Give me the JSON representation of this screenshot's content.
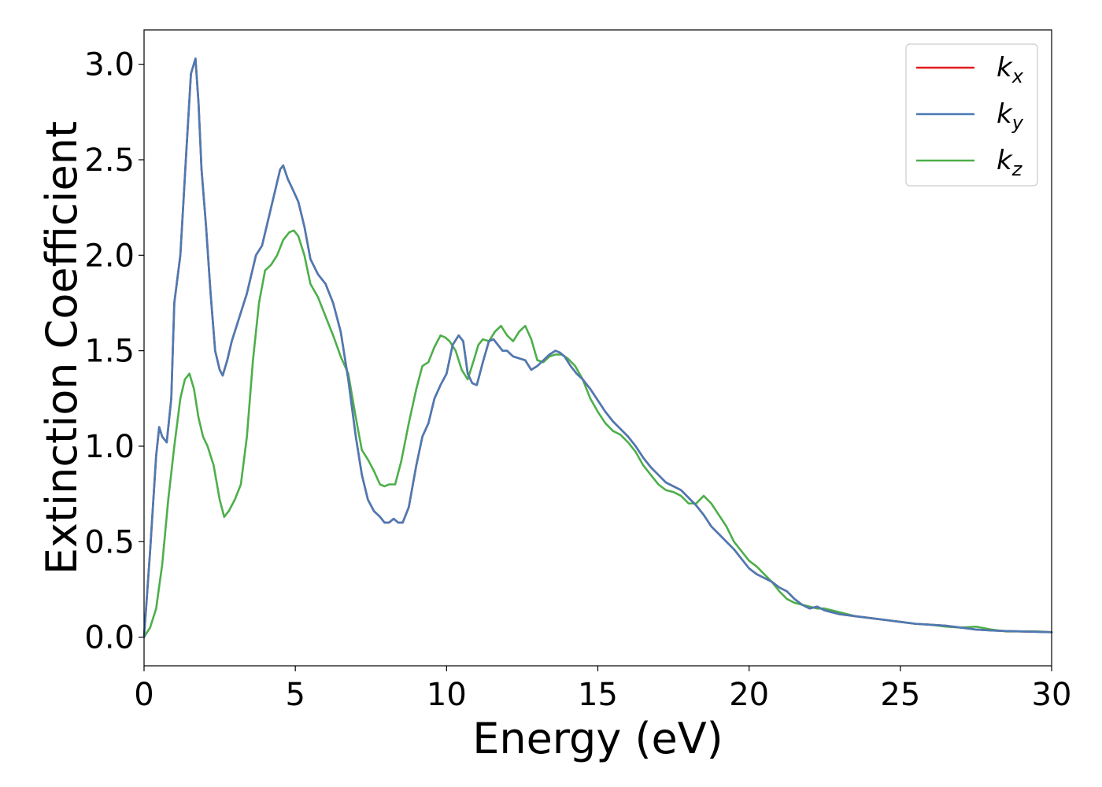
{
  "chart_data": {
    "type": "line",
    "title": "",
    "xlabel": "Energy (eV)",
    "ylabel": "Extinction Coefficient",
    "xlim": [
      0,
      30
    ],
    "ylim": [
      -0.15,
      3.18
    ],
    "xticks": [
      0,
      5,
      10,
      15,
      20,
      25,
      30
    ],
    "xtick_labels": [
      "0",
      "5",
      "10",
      "15",
      "20",
      "25",
      "30"
    ],
    "yticks": [
      0.0,
      0.5,
      1.0,
      1.5,
      2.0,
      2.5,
      3.0
    ],
    "ytick_labels": [
      "0.0",
      "0.5",
      "1.0",
      "1.5",
      "2.0",
      "2.5",
      "3.0"
    ],
    "grid": false,
    "legend_position": "top-right",
    "series": [
      {
        "name": "k",
        "name_sub": "x",
        "color": "#e41a1c",
        "x": [
          0,
          0.2,
          0.4,
          0.5,
          0.6,
          0.75,
          0.9,
          1.0,
          1.2,
          1.4,
          1.55,
          1.7,
          1.8,
          1.9,
          2.05,
          2.2,
          2.35,
          2.5,
          2.6,
          2.75,
          2.9,
          3.1,
          3.4,
          3.7,
          3.9,
          4.05,
          4.2,
          4.35,
          4.5,
          4.6,
          4.75,
          4.9,
          5.1,
          5.3,
          5.5,
          5.75,
          6.0,
          6.25,
          6.5,
          6.75,
          7.0,
          7.2,
          7.4,
          7.6,
          7.8,
          7.95,
          8.1,
          8.25,
          8.4,
          8.55,
          8.75,
          9.0,
          9.2,
          9.4,
          9.6,
          9.8,
          10.0,
          10.2,
          10.4,
          10.55,
          10.7,
          10.85,
          11.0,
          11.2,
          11.4,
          11.55,
          11.7,
          11.85,
          12.0,
          12.2,
          12.4,
          12.6,
          12.8,
          13.0,
          13.2,
          13.4,
          13.6,
          13.75,
          13.9,
          14.1,
          14.3,
          14.5,
          14.75,
          15.0,
          15.25,
          15.5,
          15.75,
          16.0,
          16.25,
          16.5,
          16.75,
          17.0,
          17.25,
          17.5,
          17.75,
          18.0,
          18.25,
          18.5,
          18.75,
          19.0,
          19.25,
          19.5,
          19.75,
          20.0,
          20.25,
          20.5,
          20.75,
          21.0,
          21.25,
          21.5,
          21.75,
          22.0,
          22.25,
          22.5,
          22.75,
          23.0,
          23.5,
          24.0,
          24.5,
          25.0,
          25.5,
          26.0,
          26.5,
          27.0,
          27.5,
          28.0,
          28.5,
          29.0,
          29.5,
          30.0
        ],
        "y": [
          0.0,
          0.45,
          0.95,
          1.1,
          1.05,
          1.02,
          1.25,
          1.75,
          2.0,
          2.55,
          2.95,
          3.03,
          2.8,
          2.45,
          2.15,
          1.8,
          1.5,
          1.4,
          1.37,
          1.45,
          1.55,
          1.65,
          1.8,
          2.0,
          2.05,
          2.15,
          2.25,
          2.35,
          2.45,
          2.47,
          2.4,
          2.35,
          2.28,
          2.15,
          1.98,
          1.9,
          1.85,
          1.75,
          1.6,
          1.35,
          1.05,
          0.85,
          0.72,
          0.66,
          0.63,
          0.6,
          0.6,
          0.62,
          0.6,
          0.6,
          0.68,
          0.9,
          1.05,
          1.12,
          1.25,
          1.32,
          1.38,
          1.53,
          1.58,
          1.55,
          1.38,
          1.33,
          1.32,
          1.44,
          1.55,
          1.56,
          1.53,
          1.5,
          1.5,
          1.47,
          1.46,
          1.45,
          1.4,
          1.42,
          1.45,
          1.48,
          1.5,
          1.49,
          1.47,
          1.42,
          1.38,
          1.35,
          1.3,
          1.24,
          1.18,
          1.13,
          1.09,
          1.05,
          1.0,
          0.94,
          0.89,
          0.85,
          0.81,
          0.79,
          0.77,
          0.73,
          0.69,
          0.64,
          0.58,
          0.54,
          0.5,
          0.46,
          0.41,
          0.36,
          0.33,
          0.31,
          0.29,
          0.26,
          0.24,
          0.2,
          0.17,
          0.15,
          0.16,
          0.14,
          0.13,
          0.12,
          0.11,
          0.1,
          0.09,
          0.08,
          0.07,
          0.065,
          0.06,
          0.05,
          0.04,
          0.035,
          0.032,
          0.03,
          0.028,
          0.026
        ]
      },
      {
        "name": "k",
        "name_sub": "y",
        "color": "#4a7bb5",
        "x": [
          0,
          0.2,
          0.4,
          0.5,
          0.6,
          0.75,
          0.9,
          1.0,
          1.2,
          1.4,
          1.55,
          1.7,
          1.8,
          1.9,
          2.05,
          2.2,
          2.35,
          2.5,
          2.6,
          2.75,
          2.9,
          3.1,
          3.4,
          3.7,
          3.9,
          4.05,
          4.2,
          4.35,
          4.5,
          4.6,
          4.75,
          4.9,
          5.1,
          5.3,
          5.5,
          5.75,
          6.0,
          6.25,
          6.5,
          6.75,
          7.0,
          7.2,
          7.4,
          7.6,
          7.8,
          7.95,
          8.1,
          8.25,
          8.4,
          8.55,
          8.75,
          9.0,
          9.2,
          9.4,
          9.6,
          9.8,
          10.0,
          10.2,
          10.4,
          10.55,
          10.7,
          10.85,
          11.0,
          11.2,
          11.4,
          11.55,
          11.7,
          11.85,
          12.0,
          12.2,
          12.4,
          12.6,
          12.8,
          13.0,
          13.2,
          13.4,
          13.6,
          13.75,
          13.9,
          14.1,
          14.3,
          14.5,
          14.75,
          15.0,
          15.25,
          15.5,
          15.75,
          16.0,
          16.25,
          16.5,
          16.75,
          17.0,
          17.25,
          17.5,
          17.75,
          18.0,
          18.25,
          18.5,
          18.75,
          19.0,
          19.25,
          19.5,
          19.75,
          20.0,
          20.25,
          20.5,
          20.75,
          21.0,
          21.25,
          21.5,
          21.75,
          22.0,
          22.25,
          22.5,
          22.75,
          23.0,
          23.5,
          24.0,
          24.5,
          25.0,
          25.5,
          26.0,
          26.5,
          27.0,
          27.5,
          28.0,
          28.5,
          29.0,
          29.5,
          30.0
        ],
        "y": [
          0.0,
          0.45,
          0.95,
          1.1,
          1.05,
          1.02,
          1.25,
          1.75,
          2.0,
          2.55,
          2.95,
          3.03,
          2.8,
          2.45,
          2.15,
          1.8,
          1.5,
          1.4,
          1.37,
          1.45,
          1.55,
          1.65,
          1.8,
          2.0,
          2.05,
          2.15,
          2.25,
          2.35,
          2.45,
          2.47,
          2.4,
          2.35,
          2.28,
          2.15,
          1.98,
          1.9,
          1.85,
          1.75,
          1.6,
          1.35,
          1.05,
          0.85,
          0.72,
          0.66,
          0.63,
          0.6,
          0.6,
          0.62,
          0.6,
          0.6,
          0.68,
          0.9,
          1.05,
          1.12,
          1.25,
          1.32,
          1.38,
          1.53,
          1.58,
          1.55,
          1.38,
          1.33,
          1.32,
          1.44,
          1.55,
          1.56,
          1.53,
          1.5,
          1.5,
          1.47,
          1.46,
          1.45,
          1.4,
          1.42,
          1.45,
          1.48,
          1.5,
          1.49,
          1.47,
          1.42,
          1.38,
          1.35,
          1.3,
          1.24,
          1.18,
          1.13,
          1.09,
          1.05,
          1.0,
          0.94,
          0.89,
          0.85,
          0.81,
          0.79,
          0.77,
          0.73,
          0.69,
          0.64,
          0.58,
          0.54,
          0.5,
          0.46,
          0.41,
          0.36,
          0.33,
          0.31,
          0.29,
          0.26,
          0.24,
          0.2,
          0.17,
          0.15,
          0.16,
          0.14,
          0.13,
          0.12,
          0.11,
          0.1,
          0.09,
          0.08,
          0.07,
          0.065,
          0.06,
          0.05,
          0.04,
          0.035,
          0.032,
          0.03,
          0.028,
          0.026
        ]
      },
      {
        "name": "k",
        "name_sub": "z",
        "color": "#4daf4a",
        "x": [
          0,
          0.2,
          0.4,
          0.6,
          0.8,
          1.0,
          1.2,
          1.35,
          1.5,
          1.65,
          1.8,
          1.95,
          2.1,
          2.3,
          2.5,
          2.65,
          2.8,
          3.0,
          3.2,
          3.4,
          3.6,
          3.8,
          4.0,
          4.2,
          4.4,
          4.6,
          4.8,
          4.95,
          5.1,
          5.3,
          5.5,
          5.75,
          6.0,
          6.25,
          6.5,
          6.75,
          7.0,
          7.2,
          7.4,
          7.6,
          7.8,
          7.95,
          8.1,
          8.3,
          8.5,
          8.75,
          9.0,
          9.2,
          9.4,
          9.6,
          9.8,
          9.95,
          10.1,
          10.3,
          10.5,
          10.7,
          10.9,
          11.05,
          11.2,
          11.4,
          11.6,
          11.8,
          12.0,
          12.2,
          12.4,
          12.6,
          12.8,
          13.0,
          13.2,
          13.4,
          13.6,
          13.8,
          14.0,
          14.25,
          14.5,
          14.75,
          15.0,
          15.25,
          15.5,
          15.75,
          16.0,
          16.25,
          16.5,
          16.75,
          17.0,
          17.25,
          17.5,
          17.75,
          18.0,
          18.25,
          18.5,
          18.75,
          19.0,
          19.25,
          19.5,
          19.75,
          20.0,
          20.25,
          20.5,
          20.75,
          21.0,
          21.25,
          21.5,
          21.75,
          22.0,
          22.25,
          22.5,
          22.75,
          23.0,
          23.5,
          24.0,
          24.5,
          25.0,
          25.5,
          26.0,
          26.5,
          27.0,
          27.5,
          28.0,
          28.5,
          29.0,
          29.5,
          30.0
        ],
        "y": [
          0.0,
          0.05,
          0.15,
          0.38,
          0.72,
          1.0,
          1.25,
          1.35,
          1.38,
          1.3,
          1.15,
          1.05,
          1.0,
          0.9,
          0.72,
          0.63,
          0.66,
          0.72,
          0.8,
          1.05,
          1.45,
          1.75,
          1.92,
          1.95,
          2.0,
          2.08,
          2.12,
          2.13,
          2.1,
          2.0,
          1.85,
          1.78,
          1.68,
          1.58,
          1.47,
          1.38,
          1.15,
          0.98,
          0.93,
          0.87,
          0.8,
          0.79,
          0.8,
          0.8,
          0.92,
          1.12,
          1.3,
          1.42,
          1.44,
          1.52,
          1.58,
          1.57,
          1.55,
          1.5,
          1.4,
          1.35,
          1.45,
          1.53,
          1.56,
          1.55,
          1.6,
          1.63,
          1.58,
          1.55,
          1.6,
          1.63,
          1.56,
          1.45,
          1.44,
          1.47,
          1.48,
          1.48,
          1.46,
          1.42,
          1.35,
          1.25,
          1.18,
          1.12,
          1.08,
          1.06,
          1.02,
          0.97,
          0.9,
          0.85,
          0.8,
          0.77,
          0.76,
          0.74,
          0.7,
          0.7,
          0.74,
          0.7,
          0.64,
          0.58,
          0.5,
          0.45,
          0.4,
          0.37,
          0.33,
          0.29,
          0.24,
          0.2,
          0.18,
          0.17,
          0.16,
          0.15,
          0.15,
          0.14,
          0.13,
          0.11,
          0.1,
          0.09,
          0.08,
          0.07,
          0.065,
          0.055,
          0.05,
          0.055,
          0.04,
          0.03,
          0.03,
          0.03,
          0.026
        ]
      }
    ]
  }
}
